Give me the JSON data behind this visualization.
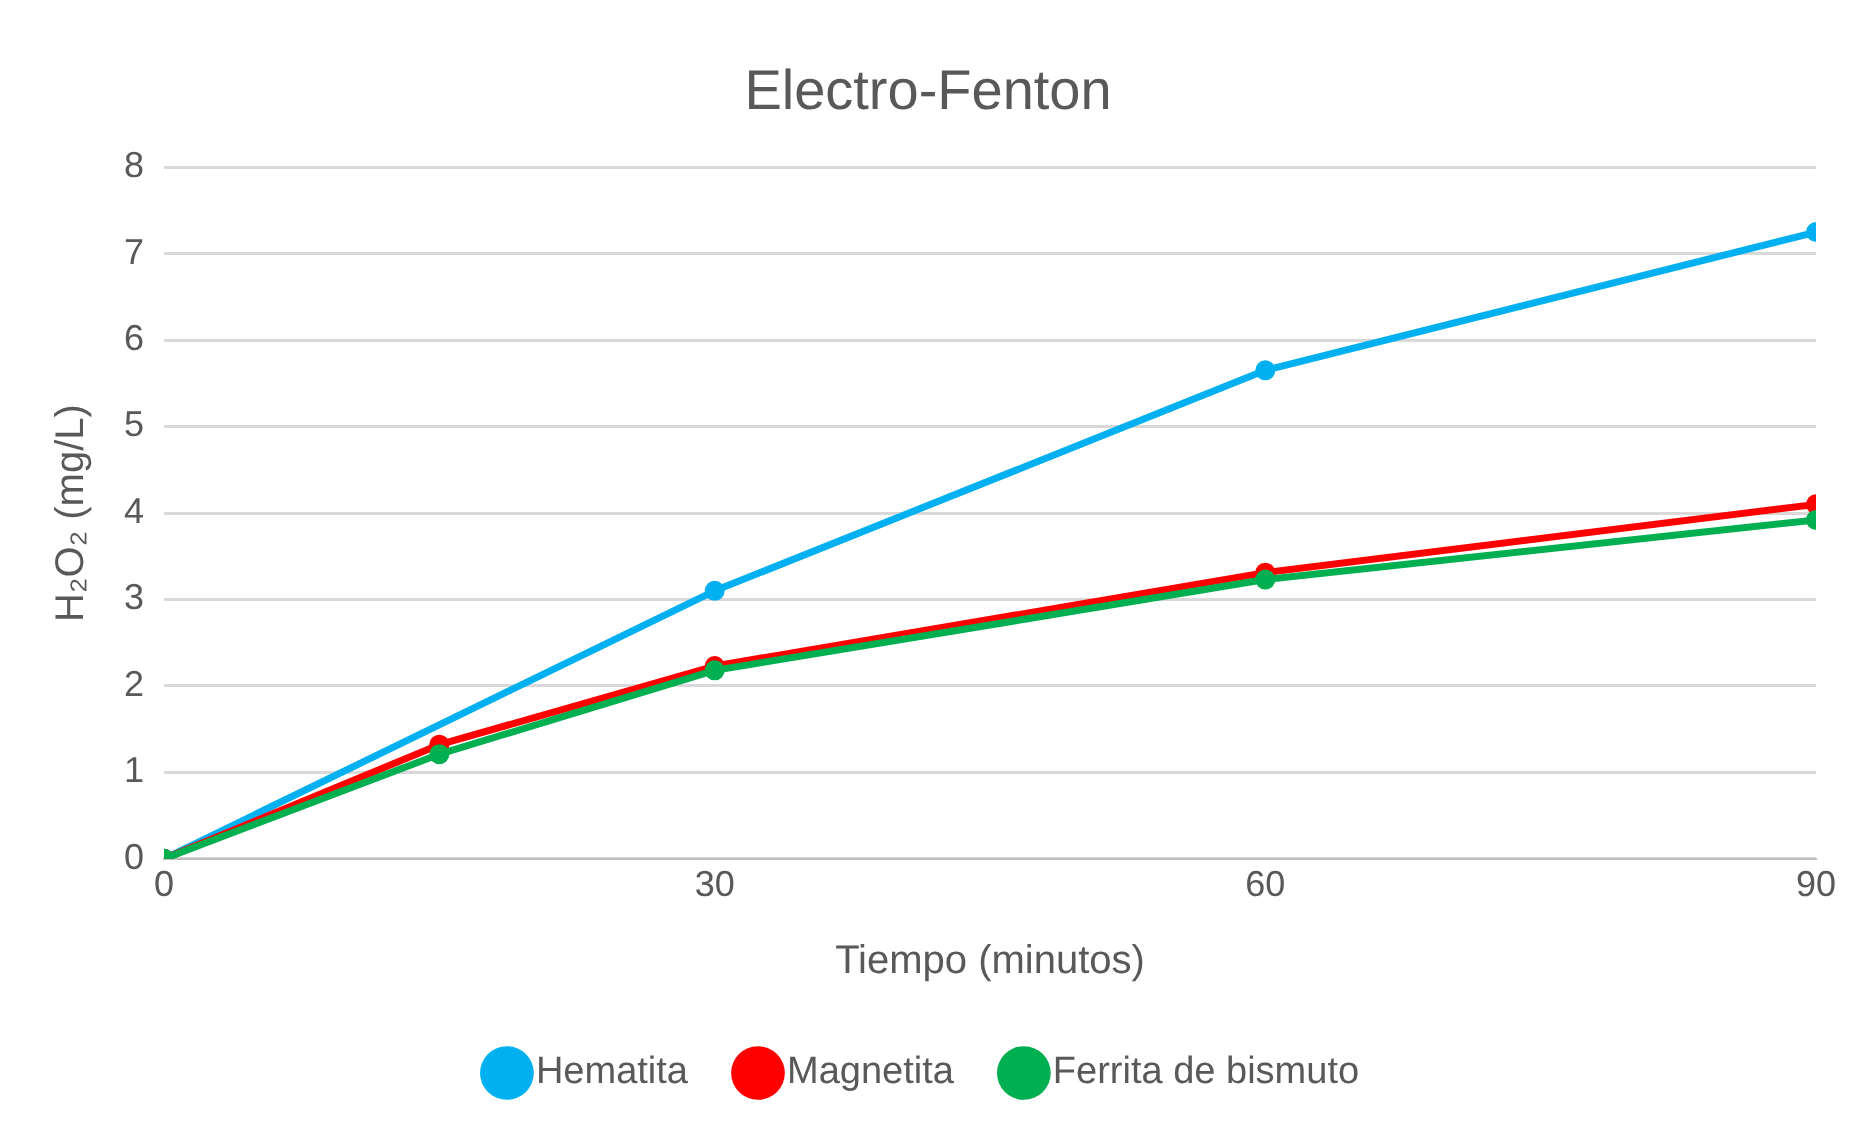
{
  "chart_data": {
    "type": "line",
    "title": "Electro-Fenton",
    "xlabel": "Tiempo (minutos)",
    "ylabel": "H₂O₂ (mg/L)",
    "xlim": [
      0,
      90
    ],
    "xticks": [
      0,
      30,
      60,
      90
    ],
    "ylim": [
      0,
      8
    ],
    "yticks": [
      0,
      1,
      2,
      3,
      4,
      5,
      6,
      7,
      8
    ],
    "grid": "y",
    "legend": "bottom",
    "marker": "circle",
    "line_style": "solid",
    "series": [
      {
        "name": "Hematita",
        "color": "#00b0f0",
        "x": [
          0,
          30,
          60,
          90
        ],
        "values": [
          0,
          3.1,
          5.65,
          7.25
        ]
      },
      {
        "name": "Magnetita",
        "color": "#ff0000",
        "x": [
          0,
          15,
          30,
          60,
          90
        ],
        "values": [
          0,
          1.32,
          2.23,
          3.31,
          4.1
        ]
      },
      {
        "name": "Ferrita de bismuto",
        "color": "#00b050",
        "x": [
          0,
          15,
          30,
          60,
          90
        ],
        "values": [
          0,
          1.21,
          2.18,
          3.23,
          3.92
        ]
      }
    ]
  }
}
